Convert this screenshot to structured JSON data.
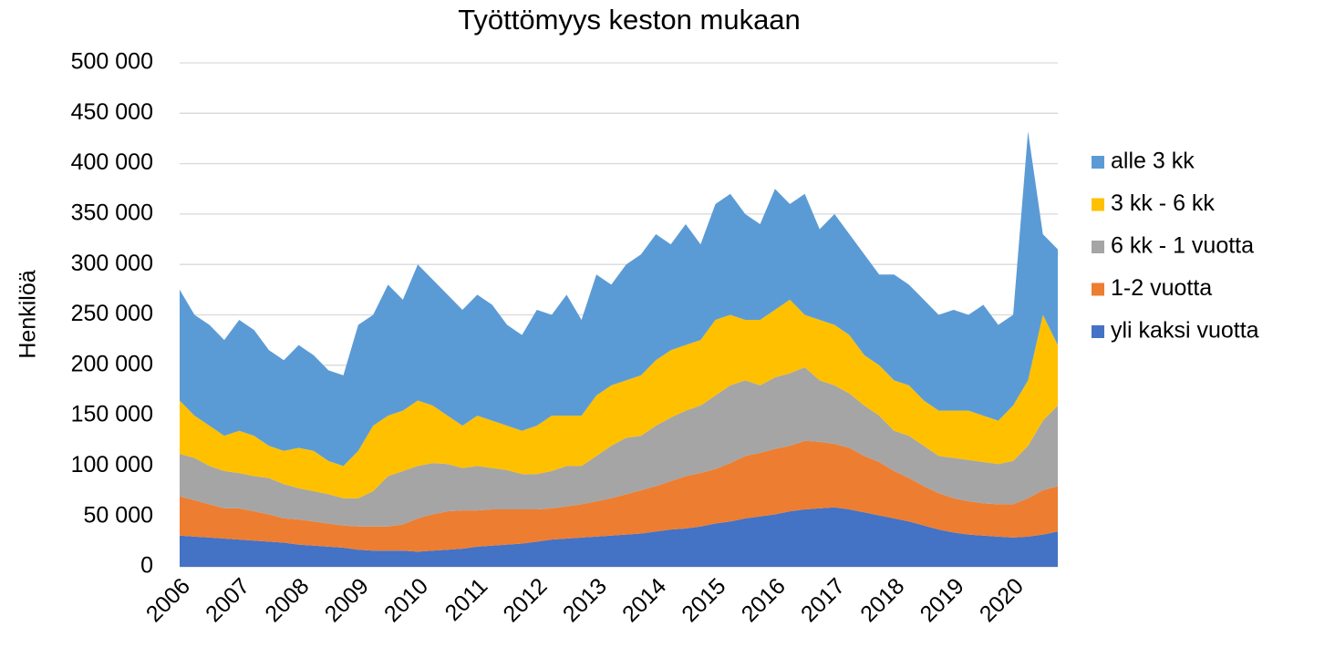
{
  "chart_data": {
    "type": "stacked_area",
    "title": "Työttömyys keston mukaan",
    "y_label": "Henkilöä",
    "categories": [
      "2006",
      null,
      null,
      null,
      "2007",
      null,
      null,
      null,
      "2008",
      null,
      null,
      null,
      "2009",
      null,
      null,
      null,
      "2010",
      null,
      null,
      null,
      "2011",
      null,
      null,
      null,
      "2012",
      null,
      null,
      null,
      "2013",
      null,
      null,
      null,
      "2014",
      null,
      null,
      null,
      "2015",
      null,
      null,
      null,
      "2016",
      null,
      null,
      null,
      "2017",
      null,
      null,
      null,
      "2018",
      null,
      null,
      null,
      "2019",
      null,
      null,
      null,
      "2020",
      null,
      null,
      null
    ],
    "series": [
      {
        "name": "alle 3 kk",
        "color": "#5b9bd5",
        "values": [
          110000,
          100000,
          100000,
          95000,
          110000,
          105000,
          95000,
          90000,
          102000,
          95000,
          90000,
          90000,
          125000,
          110000,
          130000,
          110000,
          135000,
          125000,
          120000,
          115000,
          120000,
          115000,
          100000,
          95000,
          115000,
          100000,
          120000,
          95000,
          120000,
          100000,
          115000,
          120000,
          125000,
          105000,
          120000,
          95000,
          115000,
          120000,
          105000,
          95000,
          120000,
          95000,
          120000,
          90000,
          110000,
          100000,
          100000,
          90000,
          105000,
          100000,
          100000,
          95000,
          100000,
          95000,
          110000,
          95000,
          90000,
          247000,
          80000,
          95000
        ]
      },
      {
        "name": "3 kk - 6 kk",
        "color": "#ffc000",
        "values": [
          53000,
          42000,
          40000,
          35000,
          42000,
          40000,
          32000,
          33000,
          40000,
          40000,
          33000,
          32000,
          47000,
          65000,
          60000,
          60000,
          65000,
          57000,
          48000,
          42000,
          50000,
          47000,
          44000,
          43000,
          48000,
          55000,
          50000,
          50000,
          60000,
          60000,
          57000,
          60000,
          65000,
          67000,
          65000,
          65000,
          75000,
          70000,
          60000,
          65000,
          67000,
          73000,
          52000,
          60000,
          60000,
          58000,
          50000,
          50000,
          50000,
          50000,
          45000,
          45000,
          47000,
          49000,
          46000,
          43000,
          55000,
          65000,
          105000,
          60000
        ]
      },
      {
        "name": "6 kk - 1 vuotta",
        "color": "#a5a5a5",
        "values": [
          42000,
          42000,
          38000,
          37000,
          35000,
          35000,
          36000,
          34000,
          31000,
          30000,
          29000,
          27000,
          28000,
          35000,
          50000,
          53000,
          52000,
          51000,
          47000,
          42000,
          44000,
          41000,
          39000,
          35000,
          35000,
          37000,
          40000,
          38000,
          45000,
          52000,
          56000,
          54000,
          60000,
          63000,
          65000,
          67000,
          73000,
          77000,
          75000,
          67000,
          71000,
          72000,
          73000,
          61000,
          58000,
          54000,
          50000,
          46000,
          40000,
          42000,
          40000,
          37000,
          40000,
          41000,
          41000,
          40000,
          43000,
          52000,
          69000,
          80000
        ]
      },
      {
        "name": "1-2 vuotta",
        "color": "#ed7d31",
        "values": [
          39000,
          36000,
          33000,
          30000,
          31000,
          29000,
          27000,
          24000,
          25000,
          24000,
          23000,
          22000,
          23000,
          24000,
          24000,
          26000,
          33000,
          36000,
          38000,
          38000,
          36000,
          36000,
          35000,
          34000,
          32000,
          31000,
          32000,
          33000,
          35000,
          37000,
          40000,
          43000,
          45000,
          48000,
          52000,
          53000,
          54000,
          58000,
          62000,
          63000,
          65000,
          65000,
          68000,
          66000,
          63000,
          61000,
          56000,
          53000,
          47000,
          43000,
          39000,
          36000,
          34000,
          33000,
          32000,
          32000,
          33000,
          38000,
          44000,
          45000
        ]
      },
      {
        "name": "yli kaksi vuotta",
        "color": "#4472c4",
        "values": [
          31000,
          30000,
          29000,
          28000,
          27000,
          26000,
          25000,
          24000,
          22000,
          21000,
          20000,
          19000,
          17000,
          16000,
          16000,
          16000,
          15000,
          16000,
          17000,
          18000,
          20000,
          21000,
          22000,
          23000,
          25000,
          27000,
          28000,
          29000,
          30000,
          31000,
          32000,
          33000,
          35000,
          37000,
          38000,
          40000,
          43000,
          45000,
          48000,
          50000,
          52000,
          55000,
          57000,
          58000,
          59000,
          57000,
          54000,
          51000,
          48000,
          45000,
          41000,
          37000,
          34000,
          32000,
          31000,
          30000,
          29000,
          30000,
          32000,
          35000
        ]
      }
    ],
    "ylim": [
      0,
      500000
    ],
    "yticks": [
      0,
      {
        "value": 50000,
        "label": "50 000"
      },
      {
        "value": 100000,
        "label": "100 000"
      },
      {
        "value": 150000,
        "label": "150 000"
      },
      {
        "value": 200000,
        "label": "200 000"
      },
      {
        "value": 250000,
        "label": "250 000"
      },
      {
        "value": 300000,
        "label": "300 000"
      },
      {
        "value": 350000,
        "label": "350 000"
      },
      {
        "value": 400000,
        "label": "400 000"
      },
      {
        "value": 450000,
        "label": "450 000"
      },
      {
        "value": 500000,
        "label": "500 000"
      }
    ],
    "grid": true,
    "legend": "right"
  }
}
